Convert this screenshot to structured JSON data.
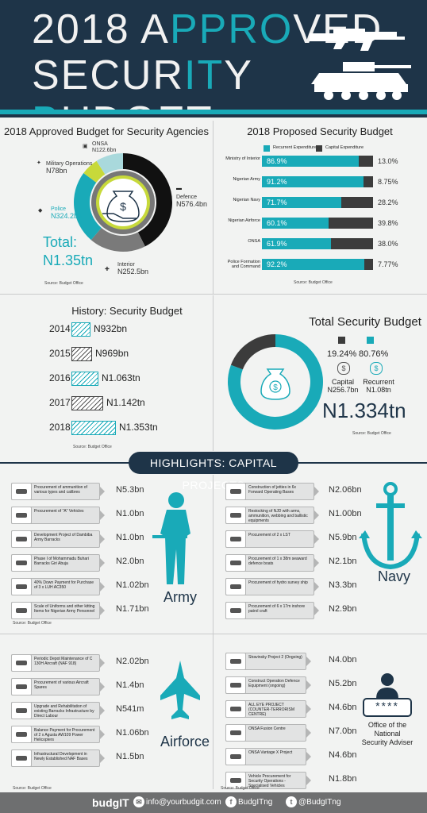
{
  "header": {
    "title_line1_a": "2018 A",
    "title_line1_b": "PPRO",
    "title_line1_c": "VED",
    "title_line2_a": "SECUR",
    "title_line2_b": "IT",
    "title_line2_c": "Y ",
    "title_line2_d": "B",
    "title_line2_e": "UDGET"
  },
  "agencies": {
    "title": "2018 Approved Budget for Security Agencies",
    "total_label": "Total:",
    "total_value": "N1.35tn",
    "source": "Source: Budget Office",
    "items": [
      {
        "name": "ONSA",
        "value": "N122.6bn"
      },
      {
        "name": "Military Operations",
        "value": "N78bn"
      },
      {
        "name": "Defence",
        "value": "N576.4bn"
      },
      {
        "name": "Police",
        "value": "N324.2bn"
      },
      {
        "name": "Interior",
        "value": "N252.5bn"
      }
    ],
    "colors": {
      "defence": "#111111",
      "interior": "#7a7a7a",
      "police": "#19aab8",
      "military": "#c7d93a",
      "onsa": "#a9d9dc"
    }
  },
  "proposed": {
    "title": "2018 Proposed Security Budget",
    "legend_recurrent": "Recurrent  Expenditure",
    "legend_capital": "Capital Expenditure",
    "source": "Source: Budget Office",
    "rows": [
      {
        "label": "Ministry of Interior",
        "recurrent": "86.9%",
        "recurrent_pct": 86.9,
        "capital": "13.0%"
      },
      {
        "label": "Nigerian Army",
        "recurrent": "91.2%",
        "recurrent_pct": 91.2,
        "capital": "8.75%"
      },
      {
        "label": "Nigerian Navy",
        "recurrent": "71.7%",
        "recurrent_pct": 71.7,
        "capital": "28.2%"
      },
      {
        "label": "Nigerian Airforce",
        "recurrent": "60.1%",
        "recurrent_pct": 60.1,
        "capital": "39.8%"
      },
      {
        "label": "ONSA",
        "recurrent": "61.9%",
        "recurrent_pct": 61.9,
        "capital": "38.0%"
      },
      {
        "label": "Police Formation and Command",
        "recurrent": "92.2%",
        "recurrent_pct": 92.2,
        "capital": "7.77%"
      }
    ]
  },
  "history": {
    "title": "History: Security Budget",
    "source": "Source: Budget Office",
    "rows": [
      {
        "year": "2014",
        "value": "N932bn",
        "amount": 932
      },
      {
        "year": "2015",
        "value": "N969bn",
        "amount": 969
      },
      {
        "year": "2016",
        "value": "N1.063tn",
        "amount": 1063
      },
      {
        "year": "2017",
        "value": "N1.142tn",
        "amount": 1142
      },
      {
        "year": "2018",
        "value": "N1.353tn",
        "amount": 1353
      }
    ]
  },
  "total": {
    "title": "Total Security Budget",
    "capital_pct": "19.24%",
    "recurrent_pct": "80.76%",
    "capital_share": 19.24,
    "capital_label": "Capital",
    "capital_value": "N256.7bn",
    "recurrent_label": "Recurrent",
    "recurrent_value": "N1.08tn",
    "total_value": "N1.334tn",
    "source": "Source: Budget Office"
  },
  "highlights": {
    "banner": "HIGHLIGHTS: CAPITAL PROJECTS",
    "army": {
      "name": "Army",
      "source": "Source: Budget Office",
      "items": [
        {
          "text": "Procurement of ammunition of various types and calibres",
          "value": "N5.3bn"
        },
        {
          "text": "Procurement of \"A\" Vehicles",
          "value": "N1.0bn"
        },
        {
          "text": "Development Project of Dambiba Army Barracks",
          "value": "N1.0bn"
        },
        {
          "text": "Phase I of Mohammadu Buhari Barracks Giri Abuja",
          "value": "N2.0bn"
        },
        {
          "text": "40% Down Payment for Purchase of 3 x LUH AC350",
          "value": "N1.02bn"
        },
        {
          "text": "Scale of Uniforms and other kitting Items for Nigerian Army Personnel",
          "value": "N1.71bn"
        }
      ]
    },
    "navy": {
      "name": "Navy",
      "items": [
        {
          "text": "Construction of jetties in 6x Forward Operating Bases",
          "value": "N2.06bn"
        },
        {
          "text": "Restocking of NJD with arms, ammunition, webbing and ballistic equipments",
          "value": "N1.00bn"
        },
        {
          "text": "Procurement of 2 x LST",
          "value": "N5.9bn"
        },
        {
          "text": "Procurement of 1 x 38m seaward defence boats",
          "value": "N2.1bn"
        },
        {
          "text": "Procurement of hydro survey ship",
          "value": "N3.3bn"
        },
        {
          "text": "Procurement of 6 x 17m inshore patrol craft",
          "value": "N2.9bn"
        }
      ]
    },
    "airforce": {
      "name": "Airforce",
      "source": "Source: Budget Office",
      "items": [
        {
          "text": "Periodic Depot Maintenance of C 130H Aircraft (NAF 918)",
          "value": "N2.02bn"
        },
        {
          "text": "Procurement of various Aircraft Spares",
          "value": "N1.4bn"
        },
        {
          "text": "Upgrade and Rehabilitation of existing Barracks Infrastructure by Direct Labour",
          "value": "N541m"
        },
        {
          "text": "Balance Payment for Procurement of 2 x Agusta AW109 Power Helicopters",
          "value": "N1.06bn"
        },
        {
          "text": "Infrastructural Development in Newly Established NAF Bases",
          "value": "N1.5bn"
        }
      ]
    },
    "onsa": {
      "name_line1": "Office of the",
      "name_line2": "National",
      "name_line3": "Security Adviser",
      "source": "Source: Budget Office",
      "password_mask": "****",
      "items": [
        {
          "text": "Stravinsky Project 2 (Ongoing)",
          "value": "N4.0bn"
        },
        {
          "text": "Construct Operation Defence Equipment (ongoing)",
          "value": "N5.2bn"
        },
        {
          "text": "ALL EYE PROJECT (COUNTER-TERRORISM CENTRE)",
          "value": "N4.6bn"
        },
        {
          "text": "ONSA Fusion Centre",
          "value": "N7.0bn"
        },
        {
          "text": "ONSA Vantage X Project",
          "value": "N4.6bn"
        },
        {
          "text": "Vehicle Procurement for Security Operations - Specialised Vehicles",
          "value": "N1.8bn"
        }
      ]
    }
  },
  "footer": {
    "brand": "budgIT",
    "email": "info@yourbudgit.com",
    "facebook": "BudgITng",
    "twitter": "@BudgITng"
  }
}
